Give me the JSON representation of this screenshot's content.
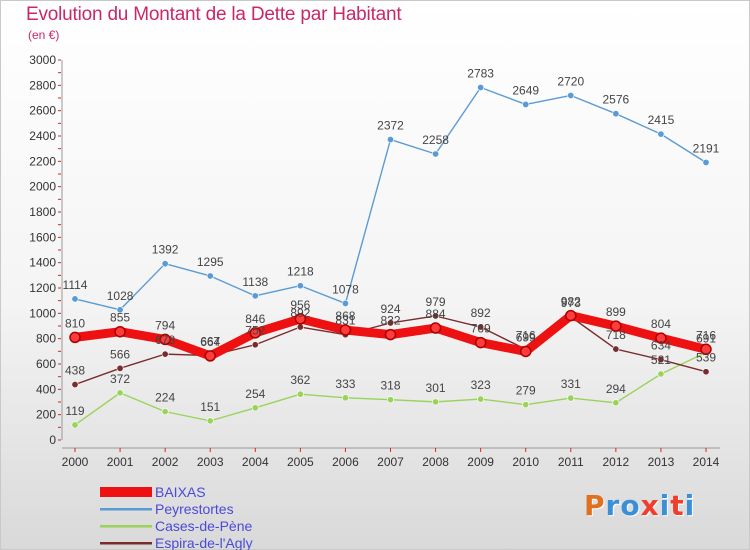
{
  "title": "Evolution du Montant de la Dette par Habitant",
  "unit": "(en €)",
  "logo": "Proxiti",
  "colors": {
    "title": "#c8286a",
    "logo_letters": [
      "#e0701f",
      "#3a8fd6",
      "#3a8fd6",
      "#ef3d2e",
      "#3a8fd6",
      "#ef3d2e",
      "#3a8fd6"
    ]
  },
  "chart_data": {
    "type": "line",
    "x": [
      2000,
      2001,
      2002,
      2003,
      2004,
      2005,
      2006,
      2007,
      2008,
      2009,
      2010,
      2011,
      2012,
      2013,
      2014
    ],
    "ylim": [
      0,
      3000
    ],
    "yticks": [
      0,
      200,
      400,
      600,
      800,
      1000,
      1200,
      1400,
      1600,
      1800,
      2000,
      2200,
      2400,
      2600,
      2800,
      3000
    ],
    "grid": false,
    "legend_position": "bottom-left",
    "title": "Evolution du Montant de la Dette par Habitant",
    "ylabel": "(en €)",
    "series": [
      {
        "name": "Peyrestortes",
        "color": "#5b9bd5",
        "values": [
          1114,
          1028,
          1392,
          1295,
          1138,
          1218,
          1078,
          2372,
          2258,
          2783,
          2649,
          2720,
          2576,
          2415,
          2191
        ],
        "labels_above": true
      },
      {
        "name": "Cases-de-Pène",
        "color": "#9ad35a",
        "values": [
          119,
          372,
          224,
          151,
          254,
          362,
          333,
          318,
          301,
          323,
          279,
          331,
          294,
          521,
          691
        ],
        "labels_above": true
      },
      {
        "name": "Espira-de-l'Agly",
        "color": "#7a2c2c",
        "values": [
          438,
          566,
          678,
          667,
          752,
          892,
          831,
          924,
          979,
          892,
          716,
          973,
          718,
          634,
          539
        ],
        "labels_above": true
      },
      {
        "name": "BAIXAS",
        "color": "#ee1111",
        "values": [
          810,
          855,
          794,
          664,
          846,
          956,
          868,
          832,
          884,
          769,
          699,
          982,
          899,
          804,
          716
        ],
        "labels_above": true
      }
    ]
  },
  "legend": [
    {
      "name": "BAIXAS",
      "color": "#ee1111"
    },
    {
      "name": "Peyrestortes",
      "color": "#5b9bd5"
    },
    {
      "name": "Cases-de-Pène",
      "color": "#9ad35a"
    },
    {
      "name": "Espira-de-l'Agly",
      "color": "#7a2c2c"
    }
  ]
}
